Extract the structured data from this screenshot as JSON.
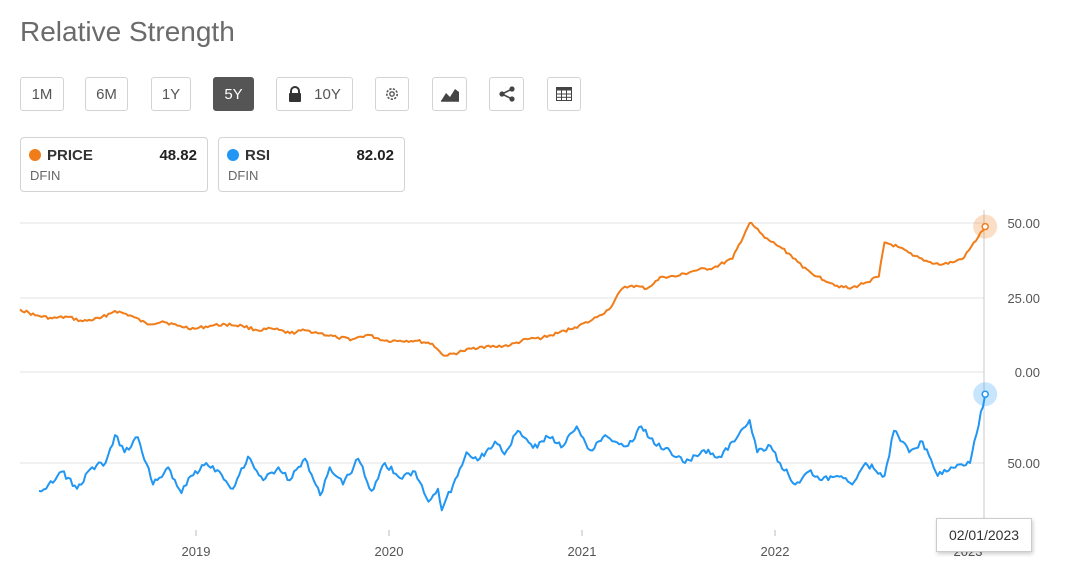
{
  "page": {
    "title": "Relative Strength"
  },
  "toolbar": {
    "ranges": [
      {
        "label": "1M",
        "active": false
      },
      {
        "label": "6M",
        "active": false
      },
      {
        "label": "1Y",
        "active": false
      },
      {
        "label": "5Y",
        "active": true
      },
      {
        "label": "10Y",
        "active": false,
        "locked": true
      }
    ],
    "icons": [
      "gear-icon",
      "chart-type-icon",
      "share-icon",
      "table-icon"
    ]
  },
  "legend": [
    {
      "name": "PRICE",
      "value": "48.82",
      "symbol": "DFIN",
      "color": "#f07d1a"
    },
    {
      "name": "RSI",
      "value": "82.02",
      "symbol": "DFIN",
      "color": "#2196f3"
    }
  ],
  "tooltip": {
    "date": "02/01/2023"
  },
  "chart_data": {
    "type": "line",
    "x_ticks": [
      "2019",
      "2020",
      "2021",
      "2022",
      "2023"
    ],
    "grid": true,
    "panels": [
      {
        "name": "PRICE",
        "color": "#f07d1a",
        "y_ticks": [
          "50.00",
          "25.00",
          "0.00"
        ],
        "ylim": [
          0,
          50
        ],
        "series": {
          "name": "PRICE",
          "x": [
            2018.0,
            2018.08,
            2018.17,
            2018.25,
            2018.33,
            2018.42,
            2018.5,
            2018.58,
            2018.67,
            2018.75,
            2018.83,
            2018.92,
            2019.0,
            2019.08,
            2019.17,
            2019.25,
            2019.33,
            2019.42,
            2019.5,
            2019.58,
            2019.67,
            2019.75,
            2019.83,
            2019.92,
            2020.0,
            2020.08,
            2020.17,
            2020.22,
            2020.25,
            2020.33,
            2020.42,
            2020.5,
            2020.58,
            2020.67,
            2020.75,
            2020.83,
            2020.92,
            2021.0,
            2021.05,
            2021.1,
            2021.17,
            2021.22,
            2021.3,
            2021.38,
            2021.45,
            2021.55,
            2021.65,
            2021.75,
            2021.84,
            2021.87,
            2021.92,
            2022.0,
            2022.08,
            2022.12,
            2022.2,
            2022.3,
            2022.37,
            2022.45,
            2022.52,
            2022.55,
            2022.62,
            2022.7,
            2022.78,
            2022.85,
            2022.92,
            2022.97,
            2023.08
          ],
          "y": [
            21,
            19,
            18,
            18.5,
            17,
            18,
            20.5,
            19,
            16,
            17,
            15.5,
            14.5,
            15.5,
            16,
            15.5,
            14,
            14.5,
            13,
            14,
            13,
            11.5,
            11,
            12.5,
            10.5,
            10.5,
            10.5,
            9.5,
            6,
            5.5,
            7,
            8.5,
            8.5,
            9,
            11,
            11.5,
            13,
            15,
            17,
            19,
            21,
            28,
            29,
            28,
            32,
            32,
            34,
            35,
            38,
            50,
            48.5,
            45,
            42,
            38,
            35,
            32,
            29,
            28,
            30,
            32,
            43.5,
            42,
            39,
            37,
            36,
            37,
            38.5,
            48.8
          ]
        }
      },
      {
        "name": "RSI",
        "color": "#2196f3",
        "y_ticks": [
          "50.00"
        ],
        "ylim": [
          20,
          90
        ],
        "series": {
          "name": "RSI",
          "x": [
            2018.1,
            2018.15,
            2018.22,
            2018.3,
            2018.38,
            2018.45,
            2018.5,
            2018.55,
            2018.62,
            2018.7,
            2018.78,
            2018.85,
            2018.9,
            2018.98,
            2019.05,
            2019.12,
            2019.2,
            2019.28,
            2019.36,
            2019.42,
            2019.5,
            2019.58,
            2019.63,
            2019.7,
            2019.78,
            2019.85,
            2019.92,
            2020.0,
            2020.08,
            2020.15,
            2020.2,
            2020.22,
            2020.28,
            2020.35,
            2020.42,
            2020.5,
            2020.55,
            2020.62,
            2020.7,
            2020.78,
            2020.86,
            2020.93,
            2021.0,
            2021.08,
            2021.13,
            2021.2,
            2021.27,
            2021.35,
            2021.4,
            2021.5,
            2021.6,
            2021.68,
            2021.76,
            2021.84,
            2021.88,
            2021.95,
            2022.0,
            2022.08,
            2022.15,
            2022.22,
            2022.3,
            2022.38,
            2022.45,
            2022.55,
            2022.6,
            2022.68,
            2022.75,
            2022.83,
            2022.9,
            2023.0,
            2023.08
          ],
          "y": [
            37,
            40,
            46,
            38,
            48,
            50,
            63,
            55,
            62,
            40,
            48,
            36,
            44,
            50,
            46,
            38,
            53,
            42,
            48,
            42,
            52,
            35,
            48,
            40,
            52,
            37,
            50,
            43,
            46,
            32,
            38,
            28,
            40,
            55,
            52,
            60,
            54,
            65,
            57,
            62,
            58,
            67,
            56,
            63,
            60,
            58,
            67,
            58,
            57,
            50,
            56,
            53,
            60,
            70,
            55,
            58,
            50,
            40,
            46,
            42,
            44,
            40,
            50,
            44,
            65,
            55,
            60,
            44,
            48,
            50,
            82
          ]
        }
      }
    ]
  }
}
